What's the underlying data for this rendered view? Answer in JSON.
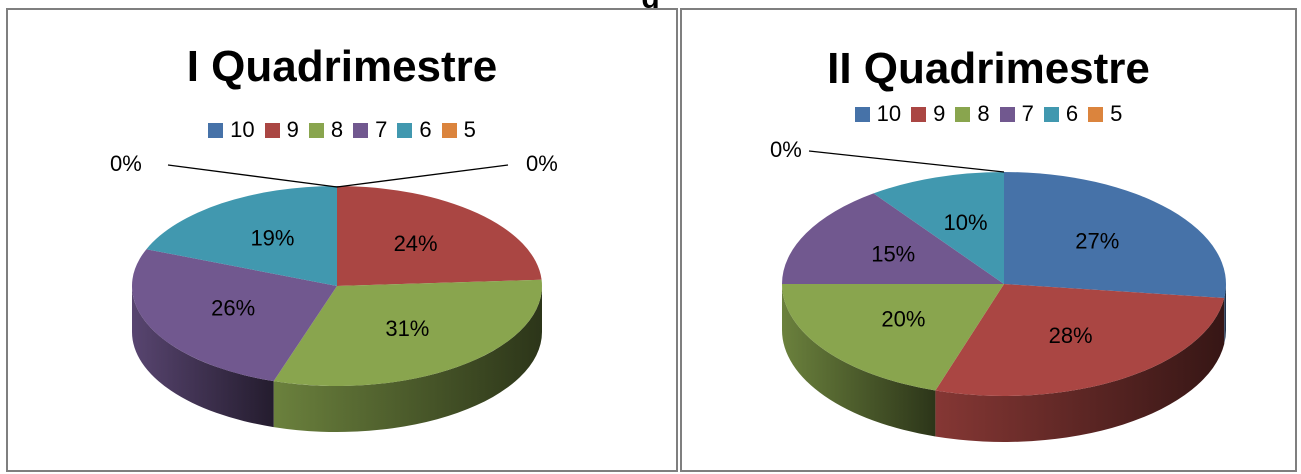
{
  "page": {
    "heading": "g"
  },
  "legend_colors": {
    "10": "#4672A8",
    "9": "#AA4643",
    "8": "#89A54E",
    "7": "#71588F",
    "6": "#4198AF",
    "5": "#DB843D"
  },
  "chart_data": [
    {
      "type": "pie",
      "title": "I Quadrimestre",
      "categories": [
        "10",
        "9",
        "8",
        "7",
        "6",
        "5"
      ],
      "values": [
        0,
        24,
        31,
        26,
        19,
        0
      ],
      "labels": [
        "0%",
        "24%",
        "31%",
        "26%",
        "19%",
        "0%"
      ],
      "legend": "top"
    },
    {
      "type": "pie",
      "title": "II Quadrimestre",
      "categories": [
        "10",
        "9",
        "8",
        "7",
        "6",
        "5"
      ],
      "values": [
        27,
        28,
        20,
        15,
        10,
        0
      ],
      "labels": [
        "27%",
        "28%",
        "20%",
        "15%",
        "10%",
        "0%"
      ],
      "legend": "top"
    }
  ]
}
